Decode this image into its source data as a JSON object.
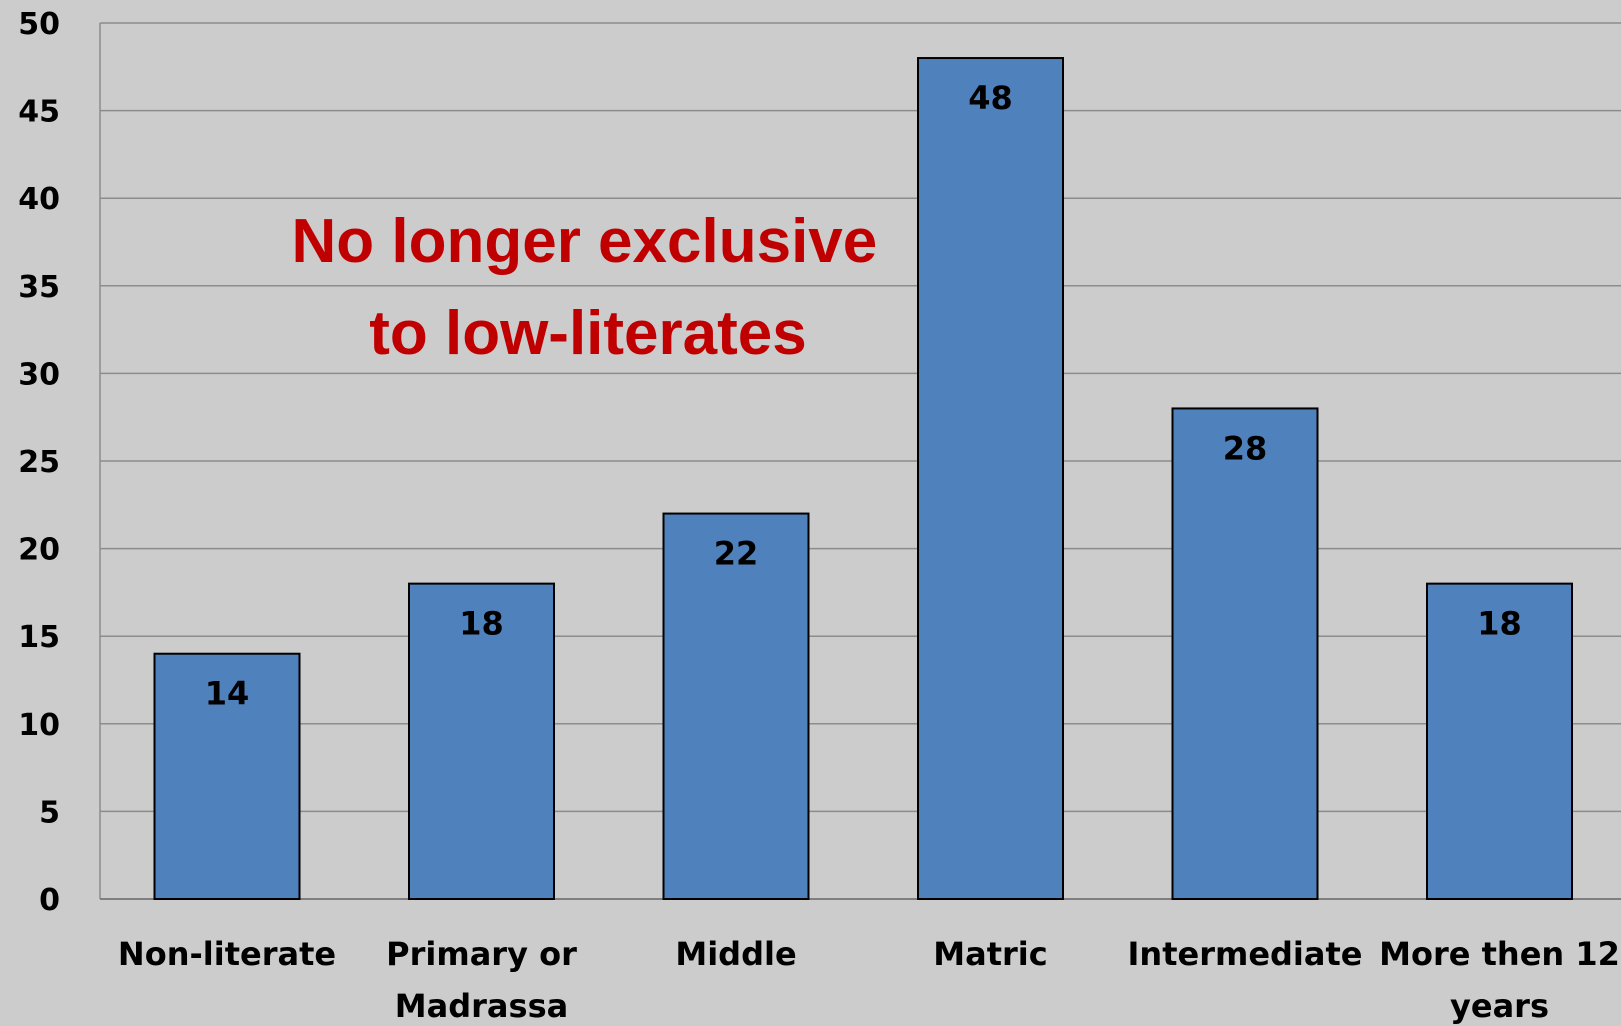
{
  "chart_data": {
    "type": "bar",
    "categories": [
      [
        "Non-literate"
      ],
      [
        "Primary or",
        "Madrassa"
      ],
      [
        "Middle"
      ],
      [
        "Matric"
      ],
      [
        "Intermediate"
      ],
      [
        "More then 12",
        "years"
      ]
    ],
    "values": [
      14,
      18,
      22,
      48,
      28,
      18
    ],
    "ylim": [
      0,
      50
    ],
    "yticks": [
      0,
      5,
      10,
      15,
      20,
      25,
      30,
      35,
      40,
      45,
      50
    ],
    "grid": true,
    "data_labels": true,
    "annotation": [
      "No longer exclusive",
      "to low-literates"
    ],
    "colors": {
      "bar_fill": "#4f81bd",
      "bar_stroke": "#000000",
      "background": "#cccccc",
      "gridline": "#8c8c8c",
      "annotation": "#c00000"
    }
  }
}
